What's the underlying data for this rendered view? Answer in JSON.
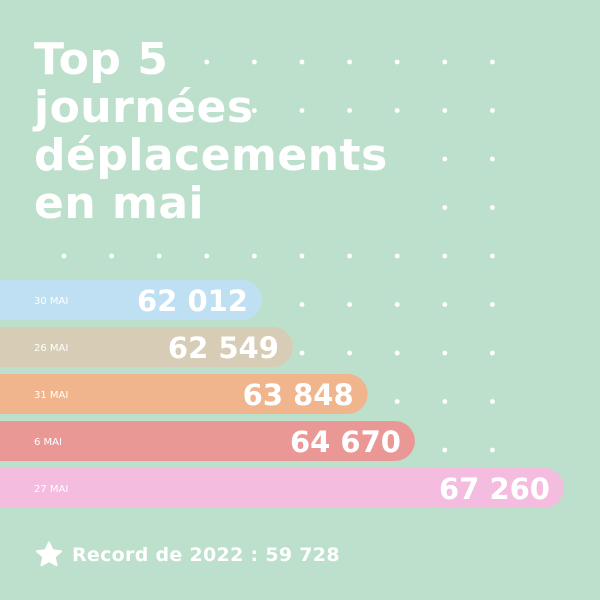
{
  "title_lines": [
    "Top 5",
    "journées",
    "déplacements",
    "en mai"
  ],
  "footer": {
    "record_text": "Record de 2022 : 59 728"
  },
  "colors": {
    "background": "#bde0cc",
    "dots": "#ffffff",
    "text": "#ffffff"
  },
  "chart_data": {
    "type": "bar",
    "orientation": "horizontal",
    "categories": [
      "30 MAI",
      "26 MAI",
      "31 MAI",
      "6 MAI",
      "27 MAI"
    ],
    "value_labels": [
      "62 012",
      "62 549",
      "63 848",
      "64 670",
      "67 260"
    ],
    "values": [
      62012,
      62549,
      63848,
      64670,
      67260
    ],
    "bar_colors": [
      "#bfe0f2",
      "#d7ccb5",
      "#f0b58d",
      "#ea9896",
      "#f4bcdf"
    ]
  }
}
